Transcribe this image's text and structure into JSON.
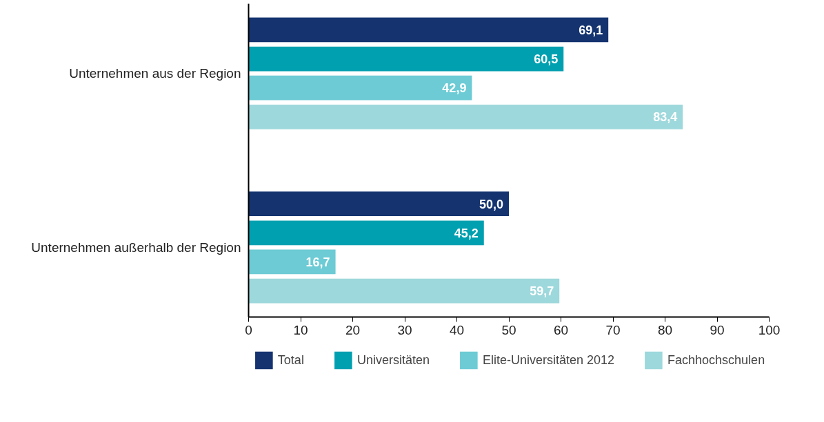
{
  "chart_data": {
    "type": "bar",
    "orientation": "horizontal",
    "categories": [
      "Unternehmen aus der Region",
      "Unternehmen außerhalb der Region"
    ],
    "series": [
      {
        "name": "Total",
        "color": "#14336f",
        "values": [
          69.1,
          50.0
        ],
        "value_labels": [
          "69,1",
          "50,0"
        ]
      },
      {
        "name": "Universitäten",
        "color": "#00a0b0",
        "values": [
          60.5,
          45.2
        ],
        "value_labels": [
          "60,5",
          "45,2"
        ]
      },
      {
        "name": "Elite-Universitäten 2012",
        "color": "#6ccbd4",
        "values": [
          42.9,
          16.7
        ],
        "value_labels": [
          "42,9",
          "16,7"
        ]
      },
      {
        "name": "Fachhochschulen",
        "color": "#9dd8dc",
        "values": [
          83.4,
          59.7
        ],
        "value_labels": [
          "83,4",
          "59,7"
        ]
      }
    ],
    "xlim": [
      0,
      100
    ],
    "xticks": [
      0,
      10,
      20,
      30,
      40,
      50,
      60,
      70,
      80,
      90,
      100
    ],
    "grid": false,
    "legend": "bottom"
  }
}
